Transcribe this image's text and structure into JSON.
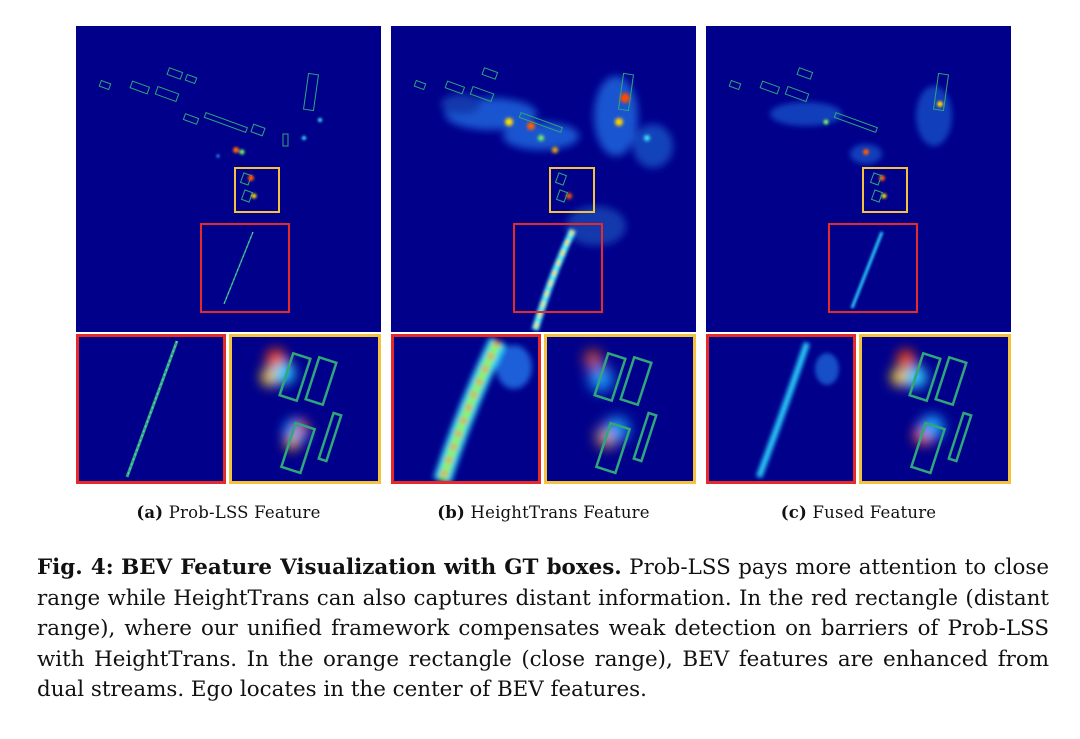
{
  "panels": [
    {
      "id": "a",
      "tag": "(a)",
      "label": "Prob-LSS Feature"
    },
    {
      "id": "b",
      "tag": "(b)",
      "label": "HeightTrans Feature"
    },
    {
      "id": "c",
      "tag": "(c)",
      "label": "Fused Feature"
    }
  ],
  "figure": {
    "number": "Fig. 4:",
    "title": "BEV Feature Visualization with GT boxes.",
    "body": "Prob-LSS pays more attention to close range while HeightTrans can also captures distant information. In the red rectangle (distant range), where our unified framework compensates weak detection on barriers of Prob-LSS with HeightTrans. In the orange rectangle (close range), BEV features are enhanced from dual streams. Ego locates in the center of BEV features."
  },
  "colors": {
    "background": "#00008b",
    "red_rect": "#e52a2a",
    "orange_rect": "#f3c340",
    "gt_box": "#2fa77a"
  }
}
